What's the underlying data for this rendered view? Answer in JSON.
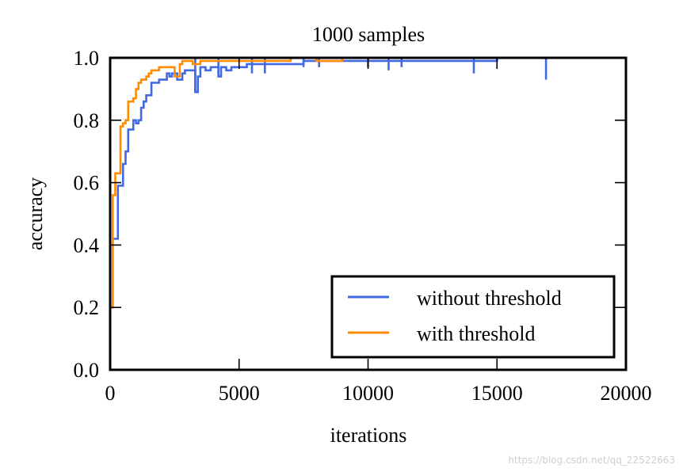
{
  "chart_data": {
    "type": "line",
    "title": "1000 samples",
    "xlabel": "iterations",
    "ylabel": "accuracy",
    "xlim": [
      0,
      20000
    ],
    "ylim": [
      0.0,
      1.0
    ],
    "x_ticks": [
      0,
      5000,
      10000,
      15000,
      20000
    ],
    "x_tick_labels": [
      "0",
      "5000",
      "10000",
      "15000",
      "20000"
    ],
    "y_ticks": [
      0.0,
      0.2,
      0.4,
      0.6,
      0.8,
      1.0
    ],
    "y_tick_labels": [
      "0.0",
      "0.2",
      "0.4",
      "0.6",
      "0.8",
      "1.0"
    ],
    "grid": false,
    "legend_position": "lower-right",
    "step": true,
    "series": [
      {
        "name": "without threshold",
        "color": "#4169e1",
        "points": [
          [
            0,
            0.2
          ],
          [
            100,
            0.42
          ],
          [
            200,
            0.42
          ],
          [
            300,
            0.59
          ],
          [
            400,
            0.59
          ],
          [
            500,
            0.66
          ],
          [
            600,
            0.7
          ],
          [
            700,
            0.77
          ],
          [
            800,
            0.77
          ],
          [
            900,
            0.8
          ],
          [
            1000,
            0.79
          ],
          [
            1100,
            0.8
          ],
          [
            1200,
            0.84
          ],
          [
            1300,
            0.86
          ],
          [
            1400,
            0.88
          ],
          [
            1500,
            0.88
          ],
          [
            1600,
            0.92
          ],
          [
            1700,
            0.92
          ],
          [
            1800,
            0.92
          ],
          [
            1900,
            0.93
          ],
          [
            2000,
            0.93
          ],
          [
            2100,
            0.93
          ],
          [
            2200,
            0.95
          ],
          [
            2300,
            0.94
          ],
          [
            2400,
            0.95
          ],
          [
            2500,
            0.95
          ],
          [
            2600,
            0.93
          ],
          [
            2700,
            0.93
          ],
          [
            2800,
            0.95
          ],
          [
            2900,
            0.96
          ],
          [
            3000,
            0.96
          ],
          [
            3200,
            0.96
          ],
          [
            3300,
            0.89
          ],
          [
            3400,
            0.94
          ],
          [
            3500,
            0.97
          ],
          [
            3700,
            0.96
          ],
          [
            3900,
            0.97
          ],
          [
            4000,
            0.97
          ],
          [
            4200,
            0.94
          ],
          [
            4300,
            0.97
          ],
          [
            4500,
            0.96
          ],
          [
            4700,
            0.97
          ],
          [
            4900,
            0.97
          ],
          [
            5100,
            0.97
          ],
          [
            5300,
            0.98
          ],
          [
            5500,
            0.98
          ],
          [
            5800,
            0.98
          ],
          [
            6000,
            0.98
          ],
          [
            6300,
            0.98
          ],
          [
            6500,
            0.98
          ],
          [
            6800,
            0.98
          ],
          [
            7000,
            0.98
          ],
          [
            7500,
            0.99
          ],
          [
            8000,
            0.99
          ],
          [
            8500,
            0.99
          ],
          [
            9000,
            0.99
          ],
          [
            9500,
            0.99
          ],
          [
            10000,
            0.99
          ],
          [
            11000,
            0.99
          ],
          [
            12000,
            0.99
          ],
          [
            13000,
            0.99
          ],
          [
            14000,
            0.99
          ],
          [
            15000,
            1.0
          ],
          [
            16000,
            1.0
          ],
          [
            17000,
            1.0
          ],
          [
            18000,
            1.0
          ],
          [
            19000,
            1.0
          ],
          [
            20000,
            1.0
          ]
        ],
        "dips": [
          [
            3300,
            0.89
          ],
          [
            4200,
            0.94
          ],
          [
            5500,
            0.95
          ],
          [
            6000,
            0.95
          ],
          [
            7500,
            0.97
          ],
          [
            8100,
            0.97
          ],
          [
            10000,
            0.97
          ],
          [
            10800,
            0.96
          ],
          [
            11300,
            0.97
          ],
          [
            14100,
            0.95
          ],
          [
            16900,
            0.93
          ]
        ]
      },
      {
        "name": "with threshold",
        "color": "#ff8c00",
        "points": [
          [
            0,
            0.2
          ],
          [
            100,
            0.56
          ],
          [
            200,
            0.63
          ],
          [
            300,
            0.63
          ],
          [
            400,
            0.78
          ],
          [
            500,
            0.79
          ],
          [
            600,
            0.8
          ],
          [
            700,
            0.86
          ],
          [
            800,
            0.86
          ],
          [
            900,
            0.87
          ],
          [
            1000,
            0.9
          ],
          [
            1100,
            0.92
          ],
          [
            1200,
            0.93
          ],
          [
            1300,
            0.93
          ],
          [
            1400,
            0.94
          ],
          [
            1500,
            0.95
          ],
          [
            1600,
            0.96
          ],
          [
            1700,
            0.96
          ],
          [
            1800,
            0.96
          ],
          [
            1900,
            0.97
          ],
          [
            2000,
            0.97
          ],
          [
            2100,
            0.97
          ],
          [
            2300,
            0.97
          ],
          [
            2500,
            0.94
          ],
          [
            2600,
            0.94
          ],
          [
            2700,
            0.98
          ],
          [
            2800,
            0.99
          ],
          [
            3000,
            0.99
          ],
          [
            3200,
            0.98
          ],
          [
            3500,
            0.99
          ],
          [
            4000,
            0.99
          ],
          [
            4500,
            0.99
          ],
          [
            5000,
            0.99
          ],
          [
            5500,
            0.99
          ],
          [
            6000,
            0.99
          ],
          [
            6500,
            0.99
          ],
          [
            7000,
            1.0
          ],
          [
            8000,
            0.99
          ],
          [
            9000,
            1.0
          ],
          [
            10000,
            1.0
          ],
          [
            11000,
            1.0
          ],
          [
            12000,
            1.0
          ],
          [
            14000,
            1.0
          ],
          [
            16000,
            1.0
          ],
          [
            18000,
            1.0
          ],
          [
            20000,
            1.0
          ]
        ]
      }
    ]
  },
  "watermark": "https://blog.csdn.net/qq_22522663"
}
